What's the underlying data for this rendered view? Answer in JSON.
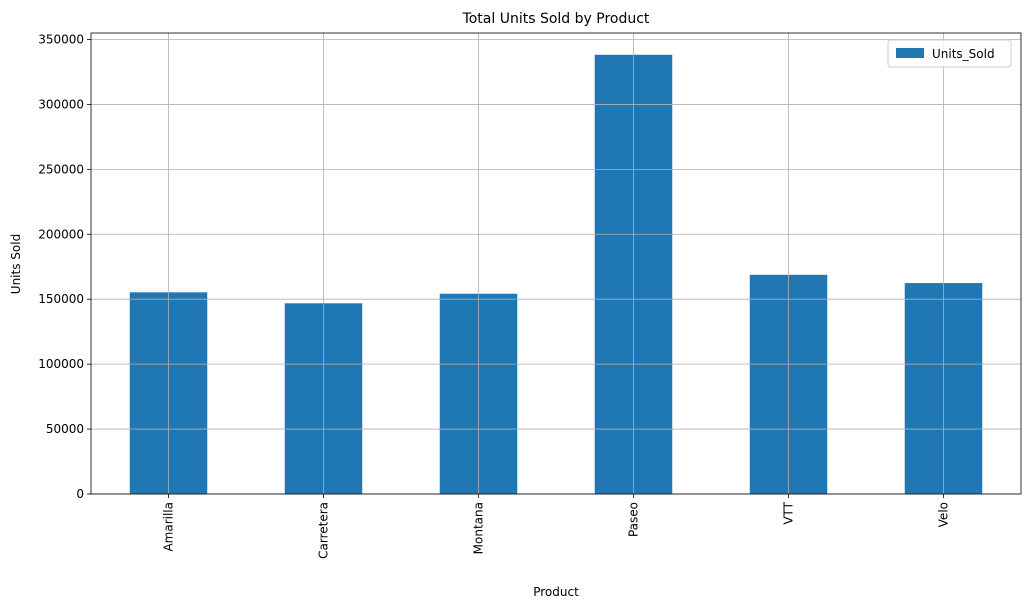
{
  "chart_data": {
    "type": "bar",
    "title": "Total Units Sold by Product",
    "xlabel": "Product",
    "ylabel": "Units Sold",
    "categories": [
      "Amarilla",
      "Carretera",
      "Montana",
      "Paseo",
      "VTT",
      "Velo"
    ],
    "series": [
      {
        "name": "Units_Sold",
        "values": [
          155315,
          146846,
          154198,
          338239,
          168783,
          162424
        ],
        "color": "#1f77b4"
      }
    ],
    "ylim": [
      0,
      355000
    ],
    "yticks": [
      0,
      50000,
      100000,
      150000,
      200000,
      250000,
      300000,
      350000
    ],
    "grid": true,
    "legend_position": "top-right",
    "x_tick_rotation": 90
  }
}
